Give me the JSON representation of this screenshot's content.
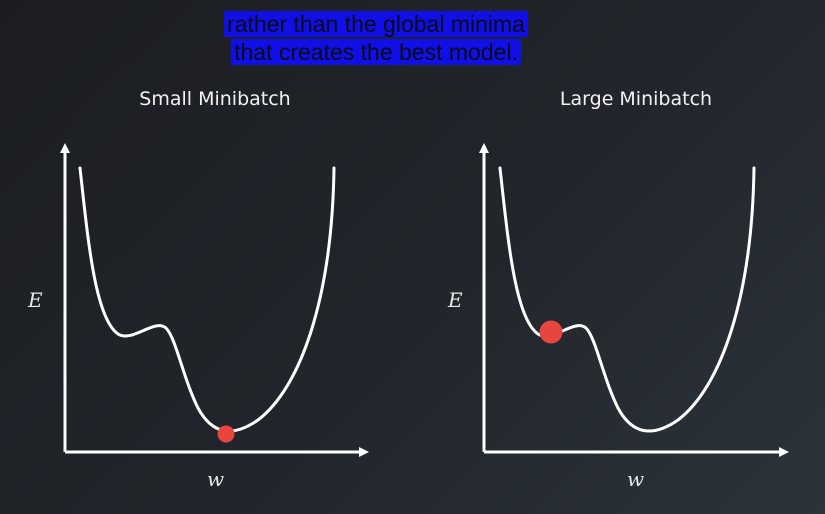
{
  "caption": {
    "line1": "rather than the global minima",
    "line2": "that creates the best model."
  },
  "panels": [
    {
      "title": "Small Minibatch",
      "ylabel": "E",
      "xlabel": "w",
      "ball": "global-minimum"
    },
    {
      "title": "Large Minibatch",
      "ylabel": "E",
      "xlabel": "w",
      "ball": "local-minimum"
    }
  ],
  "colors": {
    "background": "#202329",
    "axis": "#ffffff",
    "curve": "#ffffff",
    "ball": "#e8453f",
    "caption_highlight": "#1010e6"
  }
}
